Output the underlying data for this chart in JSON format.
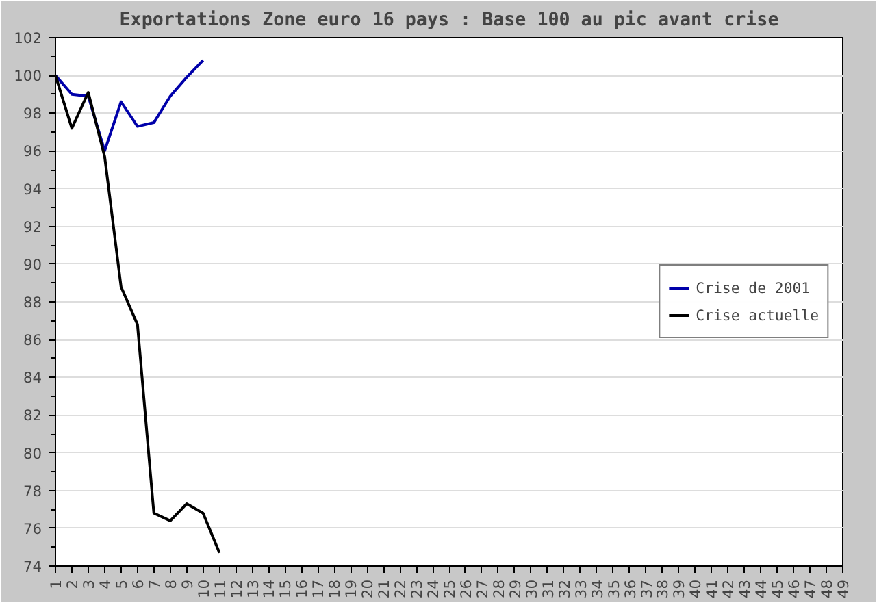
{
  "chart_data": {
    "type": "line",
    "title": "Exportations Zone euro 16 pays : Base 100 au pic avant crise",
    "categories": [
      "1",
      "2",
      "3",
      "4",
      "5",
      "6",
      "7",
      "8",
      "9",
      "10",
      "11",
      "12",
      "13",
      "14",
      "15",
      "16",
      "17",
      "18",
      "19",
      "20",
      "21",
      "22",
      "23",
      "24",
      "25",
      "26",
      "27",
      "28",
      "29",
      "30",
      "31",
      "32",
      "33",
      "34",
      "35",
      "36",
      "37",
      "38",
      "39",
      "40",
      "41",
      "42",
      "43",
      "44",
      "45",
      "46",
      "47",
      "48",
      "49"
    ],
    "series": [
      {
        "name": "Crise de 2001",
        "color": "#0000aa",
        "values": [
          100,
          99.0,
          98.9,
          96.0,
          98.6,
          97.3,
          97.5,
          98.9,
          99.9,
          100.8,
          null,
          null,
          null,
          null,
          null,
          null,
          null,
          null,
          null,
          null,
          null,
          null,
          null,
          null,
          null,
          null,
          null,
          null,
          null,
          null,
          null,
          null,
          null,
          null,
          null,
          null,
          null,
          null,
          null,
          null,
          null,
          null,
          null,
          null,
          null,
          null,
          null,
          null,
          null
        ]
      },
      {
        "name": "Crise actuelle",
        "color": "#000000",
        "values": [
          100,
          97.2,
          99.1,
          95.7,
          88.8,
          86.8,
          76.8,
          76.4,
          77.3,
          76.8,
          74.7,
          null,
          null,
          null,
          null,
          null,
          null,
          null,
          null,
          null,
          null,
          null,
          null,
          null,
          null,
          null,
          null,
          null,
          null,
          null,
          null,
          null,
          null,
          null,
          null,
          null,
          null,
          null,
          null,
          null,
          null,
          null,
          null,
          null,
          null,
          null,
          null,
          null,
          null
        ]
      }
    ],
    "ylim": [
      74,
      102
    ],
    "yticks": [
      74,
      76,
      78,
      80,
      82,
      84,
      86,
      88,
      90,
      92,
      94,
      96,
      98,
      100,
      102
    ],
    "grid": "y",
    "legend": "right",
    "marker": "none",
    "line_style": "solid"
  }
}
